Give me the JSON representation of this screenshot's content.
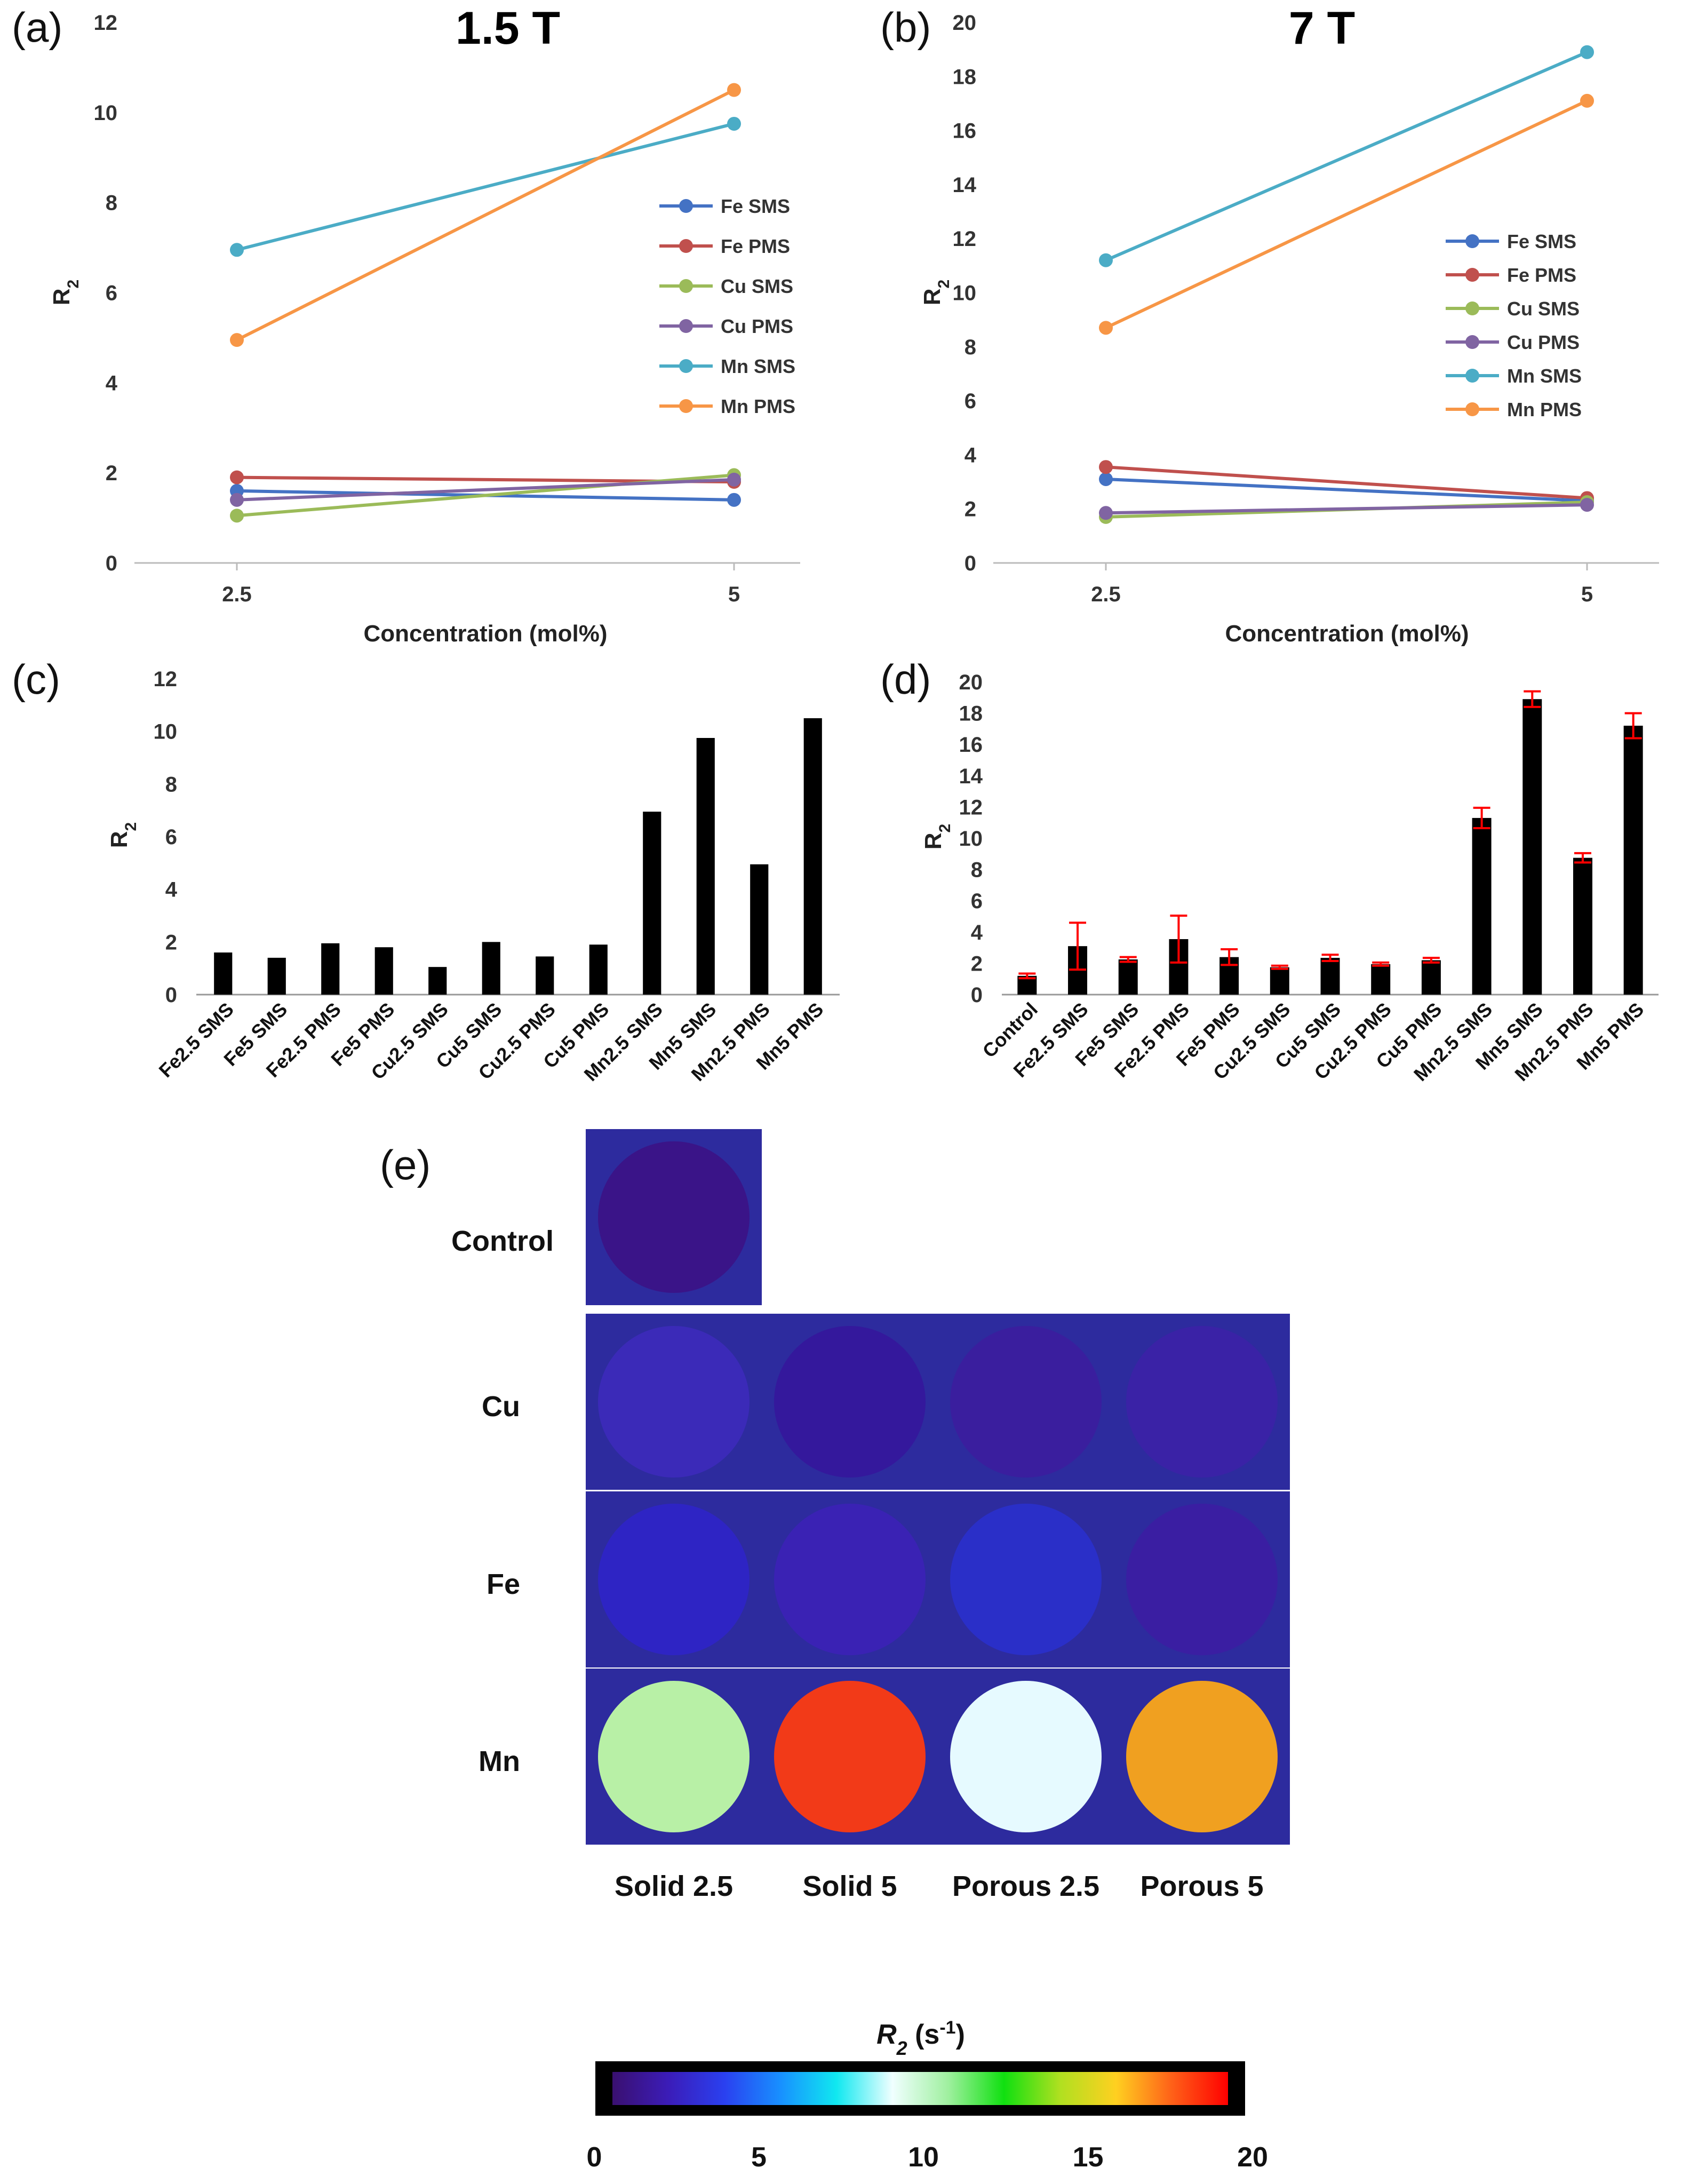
{
  "figure": {
    "panel_labels": [
      "(a)",
      "(b)",
      "(c)",
      "(d)",
      "(e)"
    ]
  },
  "chart_data": [
    {
      "id": "a",
      "type": "line",
      "title": "1.5 T",
      "xlabel": "Concentration (mol%)",
      "ylabel": "R",
      "ylabel_sub": "2",
      "categories": [
        "2.5",
        "5"
      ],
      "ylim": [
        0,
        12
      ],
      "yticks": [
        0,
        2,
        4,
        6,
        8,
        10,
        12
      ],
      "grid": false,
      "legend_position": "right",
      "series": [
        {
          "name": "Fe SMS",
          "color": "#4472C4",
          "values": [
            1.6,
            1.4
          ]
        },
        {
          "name": "Fe PMS",
          "color": "#C0504D",
          "values": [
            1.9,
            1.8
          ]
        },
        {
          "name": "Cu SMS",
          "color": "#9BBB59",
          "values": [
            1.05,
            1.95
          ]
        },
        {
          "name": "Cu PMS",
          "color": "#8064A2",
          "values": [
            1.4,
            1.85
          ]
        },
        {
          "name": "Mn SMS",
          "color": "#4BACC6",
          "values": [
            6.95,
            9.75
          ]
        },
        {
          "name": "Mn PMS",
          "color": "#F79646",
          "values": [
            4.95,
            10.5
          ]
        }
      ]
    },
    {
      "id": "b",
      "type": "line",
      "title": "7 T",
      "xlabel": "Concentration (mol%)",
      "ylabel": "R",
      "ylabel_sub": "2",
      "categories": [
        "2.5",
        "5"
      ],
      "ylim": [
        0,
        20
      ],
      "yticks": [
        0,
        2,
        4,
        6,
        8,
        10,
        12,
        14,
        16,
        18,
        20
      ],
      "grid": false,
      "legend_position": "right",
      "series": [
        {
          "name": "Fe SMS",
          "color": "#4472C4",
          "values": [
            3.1,
            2.3
          ]
        },
        {
          "name": "Fe PMS",
          "color": "#C0504D",
          "values": [
            3.55,
            2.4
          ]
        },
        {
          "name": "Cu SMS",
          "color": "#9BBB59",
          "values": [
            1.7,
            2.25
          ]
        },
        {
          "name": "Cu PMS",
          "color": "#8064A2",
          "values": [
            1.85,
            2.15
          ]
        },
        {
          "name": "Mn SMS",
          "color": "#4BACC6",
          "values": [
            11.2,
            18.9
          ]
        },
        {
          "name": "Mn PMS",
          "color": "#F79646",
          "values": [
            8.7,
            17.1
          ]
        }
      ]
    },
    {
      "id": "c",
      "type": "bar",
      "ylabel": "R",
      "ylabel_sub": "2",
      "categories": [
        "Fe2.5 SMS",
        "Fe5 SMS",
        "Fe2.5 PMS",
        "Fe5 PMS",
        "Cu2.5 SMS",
        "Cu5 SMS",
        "Cu2.5 PMS",
        "Cu5 PMS",
        "Mn2.5 SMS",
        "Mn5 SMS",
        "Mn2.5 PMS",
        "Mn5 PMS"
      ],
      "values": [
        1.6,
        1.4,
        1.95,
        1.8,
        1.05,
        2.0,
        1.45,
        1.9,
        6.95,
        9.75,
        4.95,
        10.5
      ],
      "ylim": [
        0,
        12
      ],
      "yticks": [
        0,
        2,
        4,
        6,
        8,
        10,
        12
      ],
      "bar_color": "#000000"
    },
    {
      "id": "d",
      "type": "bar",
      "ylabel": "R",
      "ylabel_sub": "2",
      "categories": [
        "Control",
        "Fe2.5 SMS",
        "Fe5 SMS",
        "Fe2.5 PMS",
        "Fe5 PMS",
        "Cu2.5 SMS",
        "Cu5 SMS",
        "Cu2.5 PMS",
        "Cu5 PMS",
        "Mn2.5 SMS",
        "Mn5 SMS",
        "Mn2.5 PMS",
        "Mn5 PMS"
      ],
      "values": [
        1.2,
        3.1,
        2.25,
        3.55,
        2.4,
        1.75,
        2.35,
        1.95,
        2.2,
        11.3,
        18.9,
        8.75,
        17.2
      ],
      "errors": [
        0.15,
        1.5,
        0.15,
        1.5,
        0.5,
        0.1,
        0.2,
        0.1,
        0.15,
        0.65,
        0.5,
        0.3,
        0.8
      ],
      "ylim": [
        0,
        20
      ],
      "yticks": [
        0,
        2,
        4,
        6,
        8,
        10,
        12,
        14,
        16,
        18,
        20
      ],
      "bar_color": "#000000",
      "error_color": "#FF0000"
    }
  ],
  "maps": {
    "row_labels": [
      "Control",
      "Cu",
      "Fe",
      "Mn"
    ],
    "column_labels": [
      "Solid 2.5",
      "Solid 5",
      "Porous 2.5",
      "Porous 5"
    ],
    "control_color": "#3A1488",
    "cells": {
      "Cu": [
        "#3B2AB8",
        "#34189C",
        "#3A1E9E",
        "#3A22A6"
      ],
      "Fe": [
        "#2E24C4",
        "#3A22B4",
        "#2A2FC8",
        "#3A1EA2"
      ],
      "Mn": [
        "#B8F0A6",
        "#F23A18",
        "#E6FAFF",
        "#F0A020"
      ]
    },
    "colorbar": {
      "title": "R",
      "title_sub": "2",
      "title_unit": "(s",
      "title_unit_sup": "-1",
      "title_close": ")",
      "min": 0,
      "max": 20,
      "ticks": [
        "0",
        "5",
        "10",
        "15",
        "20"
      ],
      "stops": [
        "#3A1070",
        "#3B1CB8",
        "#2A40F0",
        "#1890FF",
        "#10E8F0",
        "#F0FFFF",
        "#A0F0A0",
        "#10E010",
        "#B0E020",
        "#FFD020",
        "#FF6018",
        "#FF0000"
      ]
    }
  }
}
